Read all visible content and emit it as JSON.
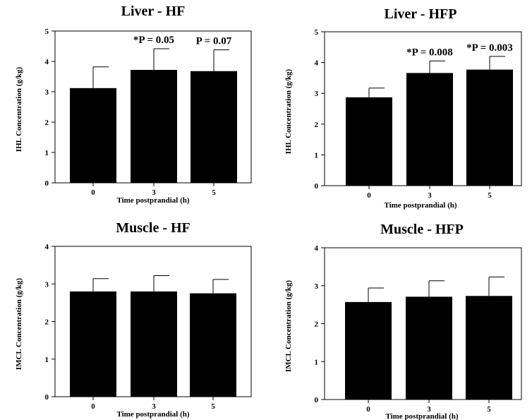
{
  "chart_data": [
    {
      "type": "bar",
      "title": "Liver - HF",
      "xlabel": "Time postprandial (h)",
      "ylabel": "IHL Concentration (g/kg)",
      "categories": [
        "0",
        "3",
        "5"
      ],
      "values": [
        3.12,
        3.72,
        3.68
      ],
      "errors": [
        0.7,
        0.7,
        0.7
      ],
      "annotations": [
        "",
        "*P = 0.05",
        "P = 0.07"
      ],
      "ylim": [
        0,
        5
      ],
      "yticks": [
        0,
        1,
        2,
        3,
        4,
        5
      ],
      "colors": {
        "bar": "#000000"
      }
    },
    {
      "type": "bar",
      "title": "Liver - HFP",
      "xlabel": "Time postprandial (h)",
      "ylabel": "IHL Concentration (g/kg)",
      "categories": [
        "0",
        "3",
        "5"
      ],
      "values": [
        2.87,
        3.66,
        3.77
      ],
      "errors": [
        0.3,
        0.39,
        0.43
      ],
      "annotations": [
        "",
        "*P = 0.008",
        "*P = 0.003"
      ],
      "ylim": [
        0,
        5
      ],
      "yticks": [
        0,
        1,
        2,
        3,
        4,
        5
      ],
      "colors": {
        "bar": "#000000"
      }
    },
    {
      "type": "bar",
      "title": "Muscle - HF",
      "xlabel": "Time postprandial (h)",
      "ylabel": "IMCL Concentration (g/kg)",
      "categories": [
        "0",
        "3",
        "5"
      ],
      "values": [
        2.8,
        2.8,
        2.75
      ],
      "errors": [
        0.34,
        0.42,
        0.37
      ],
      "annotations": [
        "",
        "",
        ""
      ],
      "ylim": [
        0,
        4
      ],
      "yticks": [
        0,
        1,
        2,
        3,
        4
      ],
      "colors": {
        "bar": "#000000"
      }
    },
    {
      "type": "bar",
      "title": "Muscle - HFP",
      "xlabel": "Time postprandial (h)",
      "ylabel": "IMCL Concentration (g/kg)",
      "categories": [
        "0",
        "3",
        "5"
      ],
      "values": [
        2.57,
        2.71,
        2.73
      ],
      "errors": [
        0.37,
        0.42,
        0.5
      ],
      "annotations": [
        "",
        "",
        ""
      ],
      "ylim": [
        0,
        4
      ],
      "yticks": [
        0,
        1,
        2,
        3,
        4
      ],
      "colors": {
        "bar": "#000000"
      }
    }
  ]
}
